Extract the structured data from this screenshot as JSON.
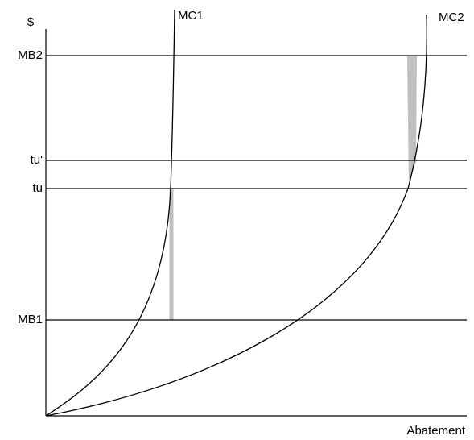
{
  "y_axis_label": "$",
  "x_axis_label": "Abatement",
  "levels": [
    {
      "label": "MB2"
    },
    {
      "label": "tu'"
    },
    {
      "label": "tu"
    },
    {
      "label": "MB1"
    }
  ],
  "curves": [
    {
      "label": "MC1"
    },
    {
      "label": "MC2"
    }
  ]
}
